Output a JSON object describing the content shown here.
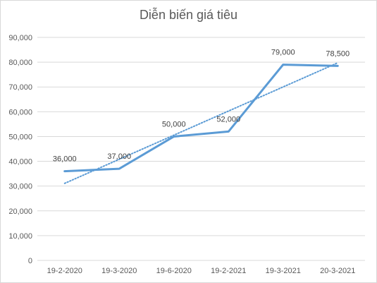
{
  "chart_data": {
    "type": "line",
    "title": "Diễn biến giá tiêu",
    "categories": [
      "19-2-2020",
      "19-3-2020",
      "19-6-2020",
      "19-2-2021",
      "19-3-2021",
      "20-3-2021"
    ],
    "series": [
      {
        "values": [
          36000,
          37000,
          50000,
          52000,
          79000,
          78500
        ],
        "color": "#5B9BD5"
      }
    ],
    "data_labels": [
      "36,000",
      "37,000",
      "50,000",
      "52,000",
      "79,000",
      "78,500"
    ],
    "trendline": {
      "type": "linear",
      "style": "dotted",
      "color": "#5B9BD5"
    },
    "ylim": [
      0,
      90000
    ],
    "y_ticks": [
      0,
      10000,
      20000,
      30000,
      40000,
      50000,
      60000,
      70000,
      80000,
      90000
    ],
    "y_tick_labels": [
      "0",
      "10,000",
      "20,000",
      "30,000",
      "40,000",
      "50,000",
      "60,000",
      "70,000",
      "80,000",
      "90,000"
    ],
    "xlabel": "",
    "ylabel": "",
    "grid": true,
    "legend": "none"
  }
}
